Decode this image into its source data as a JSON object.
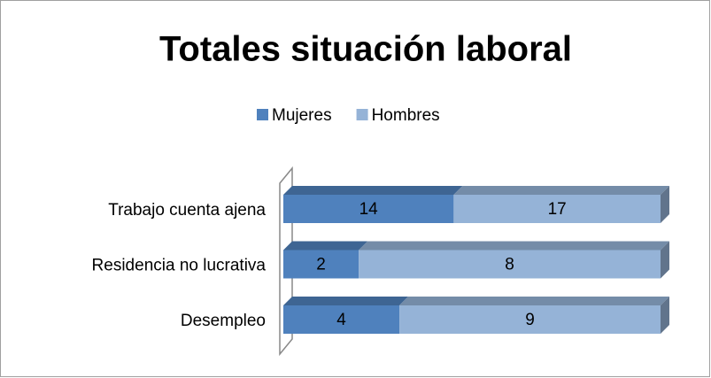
{
  "chart_data": {
    "type": "bar",
    "orientation": "horizontal",
    "stacking": "percent",
    "three_d": true,
    "title": "Totales situación laboral",
    "categories": [
      "Trabajo cuenta ajena",
      "Residencia no lucrativa",
      "Desempleo"
    ],
    "series": [
      {
        "name": "Mujeres",
        "color": "#4f81bd",
        "values": [
          14,
          2,
          4
        ]
      },
      {
        "name": "Hombres",
        "color": "#95b3d7",
        "values": [
          17,
          8,
          9
        ]
      }
    ],
    "legend": "top",
    "data_labels": true
  }
}
